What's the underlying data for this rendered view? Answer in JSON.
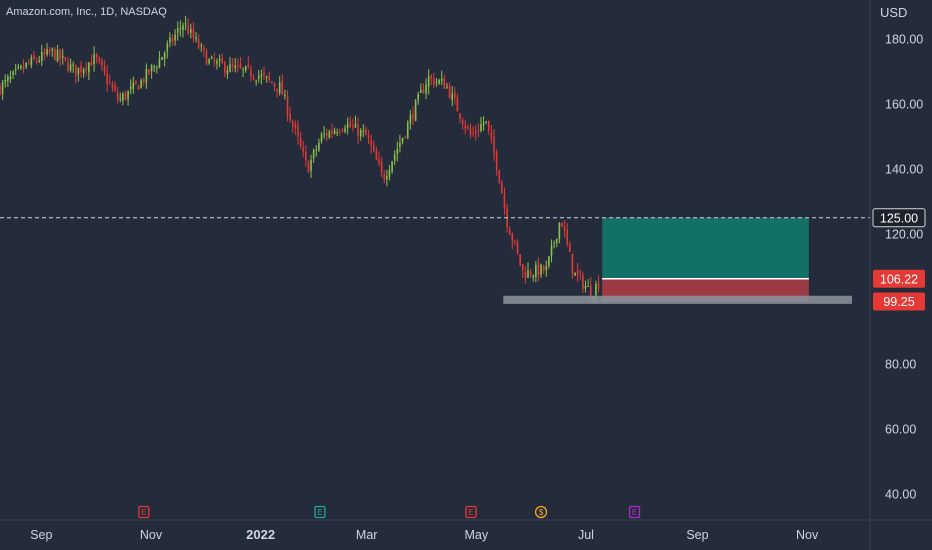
{
  "header": {
    "symbol_title": "Amazon.com, Inc., 1D, NASDAQ",
    "currency": "USD"
  },
  "colors": {
    "background": "#242b3a",
    "up": "#8bc34a",
    "down": "#e53935",
    "text": "#d1d4dc",
    "target_zone": "#137067",
    "stop_zone": "#9b3a44",
    "support": "#8d949c",
    "tag_dark": "#1d222d"
  },
  "chart_data": {
    "type": "candlestick",
    "ylim": [
      32,
      192
    ],
    "y_ticks": [
      180,
      160,
      140,
      120,
      80,
      60,
      40
    ],
    "x_labels": [
      {
        "label": "Sep",
        "date": "2021-09-01",
        "bold": false
      },
      {
        "label": "Nov",
        "date": "2021-11-01",
        "bold": false
      },
      {
        "label": "2022",
        "date": "2022-01-01",
        "bold": true
      },
      {
        "label": "Mar",
        "date": "2022-03-01",
        "bold": false
      },
      {
        "label": "May",
        "date": "2022-05-01",
        "bold": false
      },
      {
        "label": "Jul",
        "date": "2022-07-01",
        "bold": false
      },
      {
        "label": "Sep",
        "date": "2022-09-01",
        "bold": false
      },
      {
        "label": "Nov",
        "date": "2022-11-01",
        "bold": false
      }
    ],
    "x_range": [
      "2021-08-09",
      "2022-12-06"
    ],
    "series_path": [
      {
        "date": "2021-08-09",
        "price": 165
      },
      {
        "date": "2021-08-24",
        "price": 172
      },
      {
        "date": "2021-09-07",
        "price": 176
      },
      {
        "date": "2021-09-20",
        "price": 170
      },
      {
        "date": "2021-10-01",
        "price": 174
      },
      {
        "date": "2021-10-14",
        "price": 161
      },
      {
        "date": "2021-10-25",
        "price": 166
      },
      {
        "date": "2021-11-05",
        "price": 173
      },
      {
        "date": "2021-11-19",
        "price": 185
      },
      {
        "date": "2021-12-03",
        "price": 173
      },
      {
        "date": "2021-12-15",
        "price": 171
      },
      {
        "date": "2021-12-30",
        "price": 169
      },
      {
        "date": "2022-01-12",
        "price": 165
      },
      {
        "date": "2022-01-27",
        "price": 140
      },
      {
        "date": "2022-02-04",
        "price": 150
      },
      {
        "date": "2022-02-17",
        "price": 154
      },
      {
        "date": "2022-03-01",
        "price": 150
      },
      {
        "date": "2022-03-10",
        "price": 137
      },
      {
        "date": "2022-03-21",
        "price": 150
      },
      {
        "date": "2022-04-04",
        "price": 168
      },
      {
        "date": "2022-04-14",
        "price": 166
      },
      {
        "date": "2022-04-28",
        "price": 150
      },
      {
        "date": "2022-05-06",
        "price": 155
      },
      {
        "date": "2022-05-13",
        "price": 140
      },
      {
        "date": "2022-05-18",
        "price": 124
      },
      {
        "date": "2022-05-27",
        "price": 108
      },
      {
        "date": "2022-06-09",
        "price": 109
      },
      {
        "date": "2022-06-17",
        "price": 125
      },
      {
        "date": "2022-06-24",
        "price": 108
      },
      {
        "date": "2022-07-04",
        "price": 102
      },
      {
        "date": "2022-07-08",
        "price": 105
      }
    ],
    "candle_count": 230,
    "price_line": {
      "value": 125.0,
      "label": "125.00"
    },
    "position": {
      "start_date": "2022-07-10",
      "end_date": "2022-11-02",
      "target": 125.0,
      "entry": 106.22,
      "stop": 99.25,
      "entry_label": "106.22",
      "stop_label": "99.25"
    },
    "support_zone": {
      "start_date": "2022-05-16",
      "end_date": "2022-11-26",
      "low": 98.5,
      "high": 101.0
    },
    "events": [
      {
        "date": "2021-10-28",
        "letter": "E",
        "color": "#e53935"
      },
      {
        "date": "2022-02-03",
        "letter": "E",
        "color": "#26a69a"
      },
      {
        "date": "2022-04-28",
        "letter": "E",
        "color": "#e53935"
      },
      {
        "date": "2022-06-06",
        "letter": "$",
        "color": "#f5a623"
      },
      {
        "date": "2022-07-28",
        "letter": "E",
        "color": "#b02bd1"
      }
    ]
  }
}
